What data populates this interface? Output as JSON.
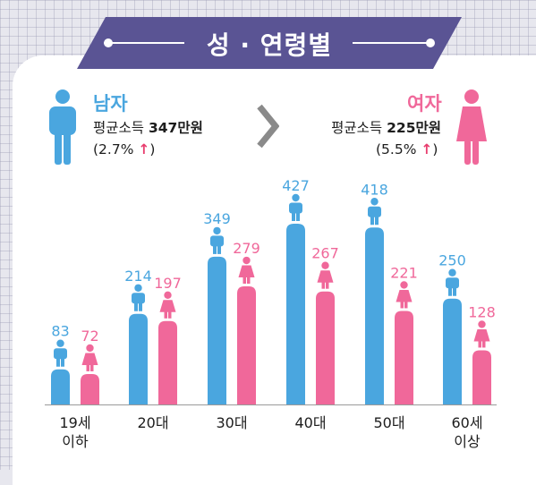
{
  "title": "성 · 연령별",
  "colors": {
    "male": "#4aa6df",
    "female": "#f0689a",
    "banner": "#5a5494",
    "arrow": "#e83d6e"
  },
  "legend": {
    "male": {
      "label": "남자",
      "income_text": "평균소득 ",
      "income_value": "347만원",
      "change_text": "(2.7% ",
      "change_close": ")",
      "icon": "male-figure-icon"
    },
    "female": {
      "label": "여자",
      "income_text": "평균소득 ",
      "income_value": "225만원",
      "change_text": "(5.5% ",
      "change_close": ")",
      "icon": "female-figure-icon"
    }
  },
  "chart_data": {
    "type": "bar",
    "categories": [
      "19세\n이하",
      "20대",
      "30대",
      "40대",
      "50대",
      "60세\n이상"
    ],
    "series": [
      {
        "name": "남자",
        "values": [
          83,
          214,
          349,
          427,
          418,
          250
        ]
      },
      {
        "name": "여자",
        "values": [
          72,
          197,
          279,
          267,
          221,
          128
        ]
      }
    ],
    "ylim": [
      0,
      427
    ]
  }
}
